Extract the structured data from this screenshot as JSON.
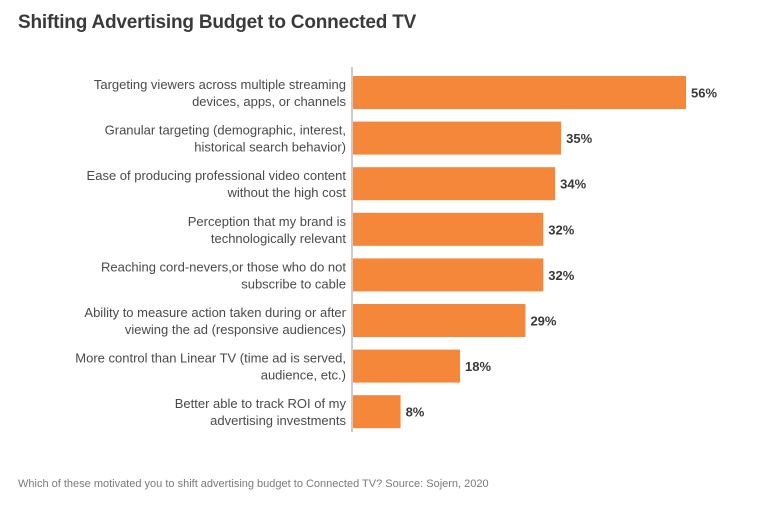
{
  "chart_data": {
    "type": "bar",
    "orientation": "horizontal",
    "title": "Shifting Advertising Budget to Connected TV",
    "footnote": "Which of these motivated you to shift advertising budget to Connected TV? Source: Sojern, 2020",
    "xlabel": "",
    "ylabel": "",
    "xlim": [
      0,
      56
    ],
    "grid": false,
    "bar_color": "#f5873a",
    "value_suffix": "%",
    "categories": [
      [
        "Targeting viewers across multiple streaming",
        "devices, apps, or channels"
      ],
      [
        "Granular targeting (demographic, interest,",
        "historical search behavior)"
      ],
      [
        "Ease of producing professional video content",
        "without the high cost"
      ],
      [
        "Perception that my brand is",
        "technologically relevant"
      ],
      [
        "Reaching cord-nevers,or those who do not",
        "subscribe to cable"
      ],
      [
        "Ability to measure action taken during or after",
        "viewing the ad (responsive audiences)"
      ],
      [
        "More control than Linear TV (time ad is served,",
        "audience, etc.)"
      ],
      [
        "Better able to track ROI of my",
        "advertising investments"
      ]
    ],
    "values": [
      56,
      35,
      34,
      32,
      32,
      29,
      18,
      8
    ],
    "value_labels": [
      "56%",
      "35%",
      "34%",
      "32%",
      "32%",
      "29%",
      "18%",
      "8%"
    ]
  }
}
